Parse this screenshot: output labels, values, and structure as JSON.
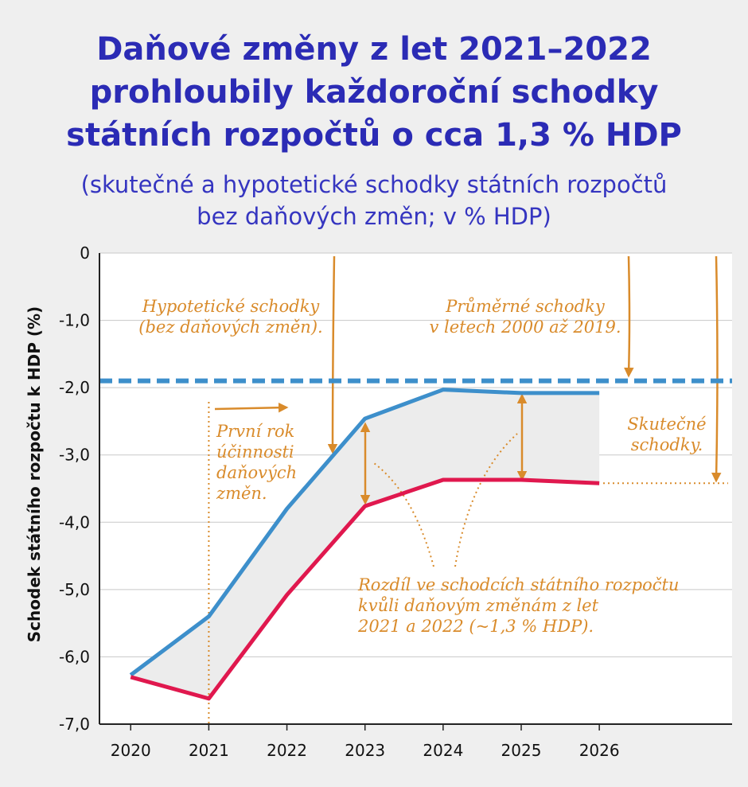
{
  "chart_data": {
    "type": "line",
    "title": [
      "Daňové změny z let 2021–2022",
      "prohloubily každoroční schodky",
      "státních rozpočtů o cca 1,3 % HDP"
    ],
    "subtitle": [
      "(skutečné a hypotetické schodky státních rozpočtů",
      "bez daňových změn; v % HDP)"
    ],
    "y_label": "Schodek státního rozpočtu k HDP (%)",
    "x": [
      2020,
      2021,
      2022,
      2023,
      2024,
      2025,
      2026
    ],
    "xlim": [
      2019.6,
      2027.7
    ],
    "xticks": [
      2020,
      2021,
      2022,
      2023,
      2024,
      2025,
      2026
    ],
    "ylim": [
      -7,
      0
    ],
    "yticks": [
      0,
      {
        "value": -1,
        "label": "-1,0"
      },
      {
        "value": -2,
        "label": "-2,0"
      },
      {
        "value": -3,
        "label": "-3,0"
      },
      {
        "value": -4,
        "label": "-4,0"
      },
      {
        "value": -5,
        "label": "-5,0"
      },
      {
        "value": -6,
        "label": "-6,0"
      },
      {
        "value": -7,
        "label": "-7,0"
      }
    ],
    "grid": true,
    "series": [
      {
        "color": "#3d8fcb",
        "values": [
          -6.27,
          -5.4,
          -3.8,
          -2.46,
          -2.03,
          -2.08,
          -2.08
        ]
      },
      {
        "color": "#e0184e",
        "values": [
          -6.3,
          -6.62,
          -5.08,
          -3.76,
          -3.37,
          -3.37,
          -3.42
        ]
      }
    ],
    "fill_between_color": "#ececec",
    "average_line": {
      "value": -1.9,
      "color": "#3d8fcb"
    },
    "annotations": [
      {
        "lines": [
          "Hypotetické schodky",
          "(bez daňových změn)."
        ]
      },
      {
        "lines": [
          "Průměrné schodky",
          "v letech 2000 až 2019."
        ]
      },
      {
        "lines": [
          "První rok",
          "účinnosti",
          "daňových",
          "změn."
        ]
      },
      {
        "lines": [
          "Skutečné",
          "schodky."
        ]
      },
      {
        "lines": [
          "Rozdíl ve schodcích státního rozpočtu",
          "kvůli daňovým změnám z let",
          "2021 a 2022 (~1,3 % HDP)."
        ]
      }
    ],
    "annotation_color": "#d98b2b"
  }
}
